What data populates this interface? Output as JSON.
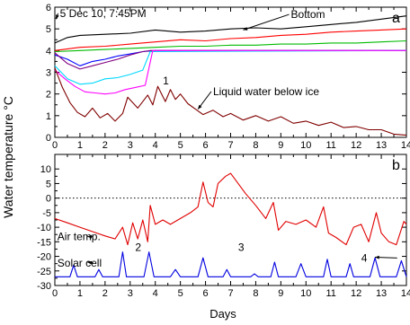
{
  "figure": {
    "ylabel": "Water temperature °C",
    "xlabel": "Days"
  },
  "chart_data": [
    {
      "type": "line",
      "panel_label": "a",
      "xlim": [
        0,
        14
      ],
      "ylim": [
        0,
        6
      ],
      "x_ticks": [
        0,
        1,
        2,
        3,
        4,
        5,
        6,
        7,
        8,
        9,
        10,
        11,
        12,
        13,
        14
      ],
      "y_ticks": [
        0,
        1,
        2,
        3,
        4,
        5,
        6
      ],
      "annotations": [
        {
          "text": "5 Dec 10, 7:45PM",
          "at": [
            0.2,
            5.55
          ],
          "target": [
            0.05,
            5.45
          ]
        },
        {
          "text": "Bottom",
          "at": [
            9.4,
            5.5
          ],
          "target": [
            7.5,
            4.95
          ]
        },
        {
          "text": "Liquid water below ice",
          "at": [
            6.3,
            1.95
          ],
          "target": [
            5.7,
            1.3
          ]
        },
        {
          "text": "1",
          "at": [
            4.3,
            2.45
          ],
          "target": null
        }
      ],
      "series": [
        {
          "color": "#000000",
          "x": [
            0,
            0.5,
            1,
            2,
            3,
            4,
            5,
            6,
            7,
            8,
            9,
            10,
            11,
            12,
            13,
            14
          ],
          "y": [
            4.35,
            4.6,
            4.7,
            4.75,
            4.8,
            4.95,
            4.85,
            4.9,
            5.0,
            5.05,
            5.0,
            5.1,
            5.2,
            5.3,
            5.45,
            5.6
          ]
        },
        {
          "color": "#ff0000",
          "x": [
            0,
            1,
            2,
            3,
            4,
            5,
            6,
            7,
            8,
            9,
            10,
            11,
            12,
            13,
            14
          ],
          "y": [
            4.0,
            4.15,
            4.2,
            4.3,
            4.4,
            4.5,
            4.45,
            4.55,
            4.6,
            4.7,
            4.75,
            4.85,
            4.9,
            4.95,
            5.0
          ]
        },
        {
          "color": "#00bb00",
          "x": [
            0,
            1,
            2,
            3,
            4,
            5,
            6,
            7,
            8,
            9,
            10,
            11,
            12,
            13,
            14
          ],
          "y": [
            3.95,
            4.0,
            4.05,
            4.1,
            4.15,
            4.2,
            4.2,
            4.25,
            4.25,
            4.3,
            4.3,
            4.35,
            4.35,
            4.4,
            4.45
          ]
        },
        {
          "color": "#0000ff",
          "x": [
            0,
            0.5,
            1,
            1.5,
            2,
            2.5,
            3,
            3.5,
            4,
            14
          ],
          "y": [
            3.8,
            3.6,
            3.3,
            3.5,
            3.6,
            3.75,
            3.85,
            3.95,
            4.0,
            4.0
          ]
        },
        {
          "color": "#800080",
          "x": [
            0,
            0.5,
            1,
            1.5,
            2,
            2.5,
            3,
            3.5,
            3.8,
            14
          ],
          "y": [
            3.9,
            3.4,
            3.15,
            3.3,
            3.45,
            3.6,
            3.8,
            3.95,
            4.0,
            4.0
          ]
        },
        {
          "color": "#00d8ff",
          "x": [
            0,
            0.5,
            1,
            1.5,
            2,
            2.5,
            3,
            3.5,
            3.8,
            14
          ],
          "y": [
            3.3,
            2.7,
            2.45,
            2.5,
            2.7,
            2.75,
            2.9,
            3.1,
            3.95,
            4.0
          ]
        },
        {
          "color": "#ff00ff",
          "x": [
            0,
            0.4,
            0.8,
            1.2,
            1.6,
            2.0,
            2.4,
            2.8,
            3.2,
            3.6,
            3.9,
            14
          ],
          "y": [
            3.1,
            2.7,
            2.35,
            2.1,
            2.05,
            2.0,
            2.05,
            2.2,
            2.3,
            2.4,
            4.0,
            4.0
          ]
        },
        {
          "color": "#800000",
          "x": [
            0,
            0.3,
            0.6,
            0.9,
            1.2,
            1.5,
            1.8,
            2.1,
            2.4,
            2.7,
            2.9,
            3.3,
            3.7,
            3.9,
            4.1,
            4.4,
            4.6,
            4.8,
            5.0,
            5.3,
            5.6,
            5.9,
            6.3,
            6.7,
            7.0,
            7.5,
            8.0,
            8.5,
            9.0,
            9.5,
            10.0,
            10.5,
            11.0,
            11.5,
            12.0,
            12.5,
            13.0,
            13.5,
            14.0
          ],
          "y": [
            3.2,
            2.3,
            1.6,
            1.15,
            0.95,
            1.35,
            0.9,
            1.1,
            0.75,
            1.1,
            1.85,
            1.35,
            1.95,
            1.5,
            2.35,
            1.65,
            2.2,
            1.75,
            2.0,
            1.55,
            1.3,
            1.05,
            1.25,
            0.95,
            1.1,
            0.8,
            1.0,
            0.75,
            0.95,
            0.65,
            0.75,
            0.55,
            0.7,
            0.45,
            0.5,
            0.35,
            0.35,
            0.15,
            0.1
          ]
        }
      ]
    },
    {
      "type": "line",
      "panel_label": "b",
      "xlim": [
        0,
        14
      ],
      "ylim": [
        -30,
        15
      ],
      "x_ticks": [
        0,
        1,
        2,
        3,
        4,
        5,
        6,
        7,
        8,
        9,
        10,
        11,
        12,
        13,
        14
      ],
      "y_ticks": [
        -30,
        -25,
        -20,
        -15,
        -10,
        -5,
        0,
        5,
        10
      ],
      "reference_line": {
        "y": 0,
        "style": "dotted"
      },
      "annotations": [
        {
          "text": "Air temp.",
          "at": [
            0.1,
            -14.5
          ],
          "target": [
            1.3,
            -13.2
          ]
        },
        {
          "text": "Solar cell",
          "at": [
            0.1,
            -23.5
          ],
          "target": [
            1.3,
            -22.0
          ]
        },
        {
          "text": "2",
          "at": [
            3.2,
            -18.2
          ],
          "target": null
        },
        {
          "text": "3",
          "at": [
            7.3,
            -18.2
          ],
          "target": null
        },
        {
          "text": "4",
          "at": [
            12.2,
            -21.8
          ],
          "target": [
            12.75,
            -20.3
          ]
        }
      ],
      "series": [
        {
          "color": "#e00000",
          "x": [
            0,
            0.5,
            1,
            1.5,
            2,
            2.4,
            2.7,
            2.9,
            3.1,
            3.3,
            3.5,
            3.7,
            3.8,
            4.0,
            4.3,
            4.6,
            5.0,
            5.4,
            5.7,
            5.9,
            6.1,
            6.3,
            6.5,
            6.8,
            7.0,
            7.3,
            7.6,
            8.0,
            8.4,
            8.7,
            8.9,
            9.2,
            9.6,
            10.0,
            10.4,
            10.7,
            10.9,
            11.2,
            11.6,
            11.9,
            12.2,
            12.5,
            12.8,
            13.0,
            13.3,
            13.6,
            13.9,
            14.0
          ],
          "y": [
            -7,
            -8.5,
            -10,
            -11.5,
            -13,
            -14,
            -10,
            -16,
            -8.5,
            -14,
            -7.5,
            -15,
            -2.5,
            -9,
            -7.5,
            -9,
            -7,
            -5,
            -3,
            5.5,
            -1.5,
            -3,
            5,
            7.5,
            8.5,
            5,
            1.5,
            -2.5,
            -7,
            -1.5,
            -11,
            -8,
            -9,
            -7.5,
            -10,
            -3,
            -12,
            -13.5,
            -16,
            -10,
            -9,
            -15,
            -5,
            -12,
            -15,
            -16,
            -8,
            -9
          ]
        },
        {
          "color": "#0000e0",
          "x": [
            0,
            0.6,
            0.75,
            0.9,
            1.6,
            1.75,
            1.9,
            2.55,
            2.7,
            2.85,
            3.55,
            3.75,
            3.95,
            4.6,
            4.8,
            5.0,
            5.7,
            5.9,
            6.1,
            6.7,
            6.85,
            7.0,
            7.8,
            7.95,
            8.1,
            8.6,
            8.75,
            8.9,
            9.6,
            9.8,
            10.0,
            10.7,
            10.85,
            11.0,
            11.6,
            11.75,
            11.9,
            12.55,
            12.75,
            12.95,
            13.6,
            13.8,
            14.0
          ],
          "y": [
            -27,
            -27,
            -23,
            -27,
            -27,
            -24.5,
            -27,
            -27,
            -18.5,
            -27,
            -27,
            -18.5,
            -27,
            -27,
            -24.5,
            -27,
            -27,
            -20.5,
            -27,
            -27,
            -24.5,
            -27,
            -27,
            -26,
            -27,
            -27,
            -22,
            -27,
            -27,
            -22.5,
            -27,
            -27,
            -21,
            -27,
            -27,
            -22.5,
            -27,
            -27,
            -20.5,
            -27,
            -27,
            -21.5,
            -27
          ]
        }
      ]
    }
  ]
}
